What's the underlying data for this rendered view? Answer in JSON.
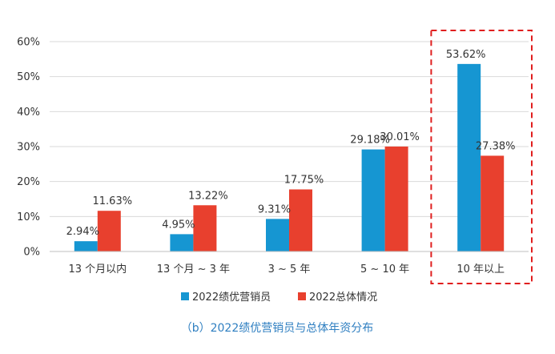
{
  "chart_data": {
    "type": "bar",
    "categories": [
      "13 个月以内",
      "13 个月 ~ 3 年",
      "3 ~ 5 年",
      "5 ~ 10 年",
      "10 年以上"
    ],
    "series": [
      {
        "name": "2022绩优营销员",
        "values": [
          2.94,
          4.95,
          9.31,
          29.18,
          53.62
        ],
        "labels": [
          "2.94%",
          "4.95%",
          "9.31%",
          "29.18%",
          "53.62%"
        ],
        "color": "#1696d2"
      },
      {
        "name": "2022总体情况",
        "values": [
          11.63,
          13.22,
          17.75,
          30.01,
          27.38
        ],
        "labels": [
          "11.63%",
          "13.22%",
          "17.75%",
          "30.01%",
          "27.38%"
        ],
        "color": "#e8402e"
      }
    ],
    "yticks": [
      "0%",
      "10%",
      "20%",
      "30%",
      "40%",
      "50%",
      "60%"
    ],
    "ylim": [
      0,
      60
    ],
    "grid": true,
    "legend": "bottom",
    "highlight_category": "10 年以上",
    "highlight_color": "#e01e1e",
    "caption": "（b）2022绩优营销员与总体年资分布"
  }
}
